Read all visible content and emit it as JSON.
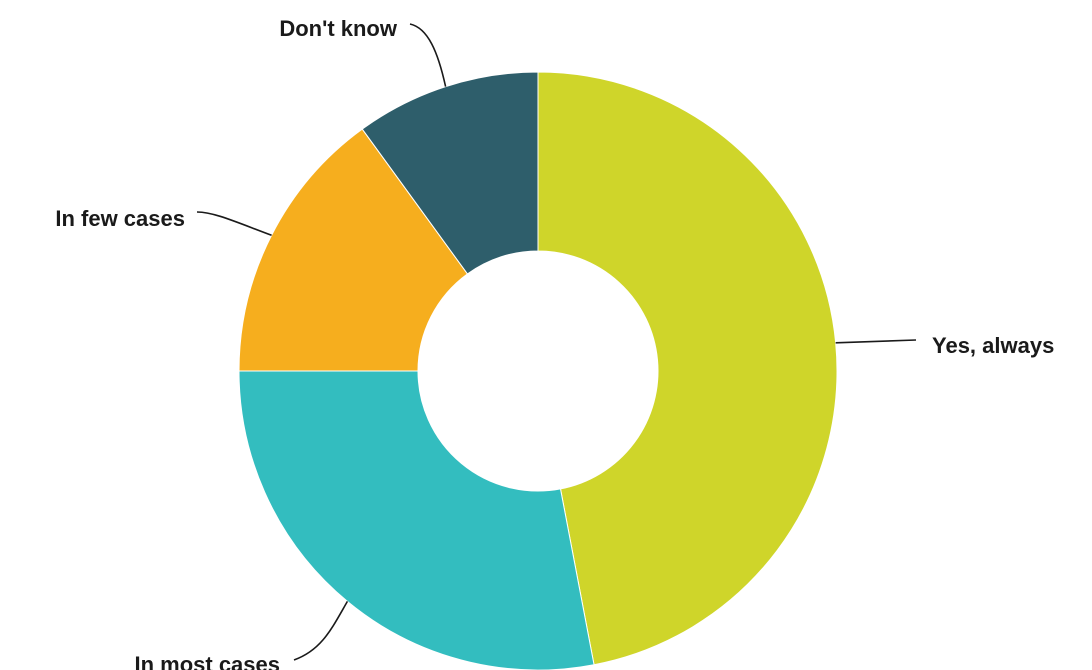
{
  "chart_data": {
    "type": "pie",
    "variant": "donut",
    "categories": [
      "Yes, always",
      "In most cases",
      "In few cases",
      "Don't know"
    ],
    "values": [
      47,
      28,
      15,
      10
    ],
    "colors": [
      "#cfd52a",
      "#33bdbf",
      "#f6ae1e",
      "#2e5e6b"
    ],
    "title": "",
    "legend": "none (slice labels with leader lines)"
  }
}
